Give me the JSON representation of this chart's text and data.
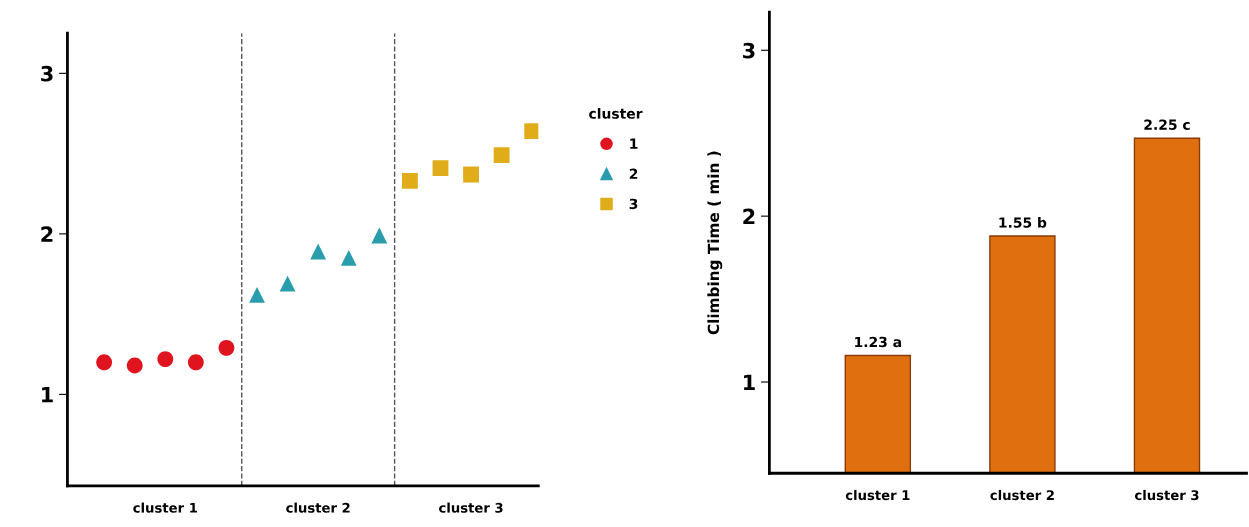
{
  "chart_data": [
    {
      "type": "scatter",
      "legend_title": "cluster",
      "legend": "right",
      "grid": false,
      "categories": [
        null,
        null,
        "cluster 1",
        null,
        null,
        null,
        null,
        "cluster 2",
        null,
        null,
        null,
        null,
        "cluster 3",
        null,
        null
      ],
      "ylim": [
        0.43,
        3.25
      ],
      "yticks": [
        1,
        2,
        3
      ],
      "series": [
        {
          "name": "1",
          "color": "#e0141e",
          "marker": "circle",
          "values": [
            1.2,
            1.18,
            1.22,
            1.2,
            1.29,
            null,
            null,
            null,
            null,
            null,
            null,
            null,
            null,
            null,
            null
          ]
        },
        {
          "name": "2",
          "color": "#2a9dad",
          "marker": "triangle",
          "values": [
            null,
            null,
            null,
            null,
            null,
            1.62,
            1.69,
            1.89,
            1.85,
            1.99,
            null,
            null,
            null,
            null,
            null
          ]
        },
        {
          "name": "3",
          "color": "#e0ac1a",
          "marker": "square",
          "values": [
            null,
            null,
            null,
            null,
            null,
            null,
            null,
            null,
            null,
            null,
            2.33,
            2.41,
            2.37,
            2.49,
            2.64
          ]
        }
      ]
    },
    {
      "type": "bar",
      "ylabel": "Climbing Time ( min )",
      "categories": [
        "cluster 1",
        "cluster 2",
        "cluster 3"
      ],
      "values": [
        1.16,
        1.88,
        2.47
      ],
      "color": "#e0700f",
      "annotations": [
        {
          "text": "1.23 a",
          "x": "cluster 1",
          "y": 1.16
        },
        {
          "text": "1.55 b",
          "x": "cluster 2",
          "y": 1.88
        },
        {
          "text": "2.25 c",
          "x": "cluster 3",
          "y": 2.47
        }
      ],
      "ylim": [
        0.45,
        3.23
      ],
      "yticks": [
        1,
        2,
        3
      ],
      "grid": false
    }
  ]
}
